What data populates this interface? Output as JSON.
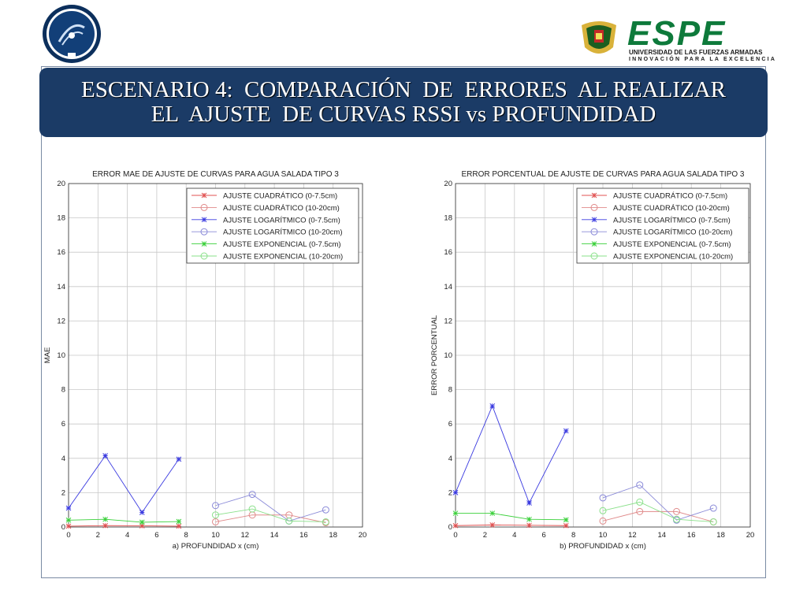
{
  "header": {
    "title_line1": "ESCENARIO 4:  COMPARACIÓN  DE  ERRORES  AL REALIZAR",
    "title_line2": "EL  AJUSTE  DE CURVAS RSSI vs PROFUNDIDAD"
  },
  "logos": {
    "left_icon": "telecom-seal-icon",
    "right_icon": "espe-crest-icon",
    "espe_word": "ESPE",
    "espe_line1": "UNIVERSIDAD DE LAS FUERZAS ARMADAS",
    "espe_line2": "INNOVACIÓN PARA LA EXCELENCIA",
    "colors": {
      "navy": "#1b3b66",
      "green": "#0e7a3b"
    }
  },
  "chart_data": [
    {
      "type": "line",
      "title": "ERROR MAE DE AJUSTE DE CURVAS PARA AGUA SALADA TIPO 3",
      "xlabel": "a) PROFUNDIDAD   x (cm)",
      "ylabel": "MAE",
      "xlim": [
        0,
        20
      ],
      "ylim": [
        0,
        20
      ],
      "xticks": [
        0,
        2,
        4,
        6,
        8,
        10,
        12,
        14,
        16,
        18,
        20
      ],
      "yticks": [
        0,
        2,
        4,
        6,
        8,
        10,
        12,
        14,
        16,
        18,
        20
      ],
      "grid": true,
      "legend_position": "top-right",
      "series": [
        {
          "name": "AJUSTE CUADRÁTICO (0-7.5cm)",
          "color": "#e05050",
          "marker": "star",
          "x": [
            0,
            2.5,
            5,
            7.5
          ],
          "y": [
            0.05,
            0.08,
            0.07,
            0.05
          ]
        },
        {
          "name": "AJUSTE CUADRÁTICO (10-20cm)",
          "color": "#e08a8a",
          "marker": "circle",
          "x": [
            10,
            12.5,
            15,
            17.5
          ],
          "y": [
            0.3,
            0.7,
            0.7,
            0.25
          ]
        },
        {
          "name": "AJUSTE LOGARÍTMICO (0-7.5cm)",
          "color": "#3a3ae0",
          "marker": "star",
          "x": [
            0,
            2.5,
            5,
            7.5
          ],
          "y": [
            1.1,
            4.15,
            0.85,
            3.95
          ]
        },
        {
          "name": "AJUSTE LOGARÍTMICO (10-20cm)",
          "color": "#8a8ad8",
          "marker": "circle",
          "x": [
            10,
            12.5,
            15,
            17.5
          ],
          "y": [
            1.25,
            1.9,
            0.35,
            1.0
          ]
        },
        {
          "name": "AJUSTE EXPONENCIAL (0-7.5cm)",
          "color": "#3ad03a",
          "marker": "star",
          "x": [
            0,
            2.5,
            5,
            7.5
          ],
          "y": [
            0.4,
            0.45,
            0.28,
            0.32
          ]
        },
        {
          "name": "AJUSTE EXPONENCIAL (10-20cm)",
          "color": "#8ae08a",
          "marker": "circle",
          "x": [
            10,
            12.5,
            15,
            17.5
          ],
          "y": [
            0.7,
            1.05,
            0.35,
            0.3
          ]
        }
      ]
    },
    {
      "type": "line",
      "title": "ERROR PORCENTUAL DE AJUSTE DE CURVAS PARA AGUA SALADA TIPO 3",
      "xlabel": "b) PROFUNDIDAD   x (cm)",
      "ylabel": "ERROR PORCENTUAL",
      "xlim": [
        0,
        20
      ],
      "ylim": [
        0,
        20
      ],
      "xticks": [
        0,
        2,
        4,
        6,
        8,
        10,
        12,
        14,
        16,
        18,
        20
      ],
      "yticks": [
        0,
        2,
        4,
        6,
        8,
        10,
        12,
        14,
        16,
        18,
        20
      ],
      "grid": true,
      "legend_position": "top-right",
      "series": [
        {
          "name": "AJUSTE CUADRÁTICO (0-7.5cm)",
          "color": "#e05050",
          "marker": "star",
          "x": [
            0,
            2.5,
            5,
            7.5
          ],
          "y": [
            0.08,
            0.12,
            0.1,
            0.08
          ]
        },
        {
          "name": "AJUSTE CUADRÁTICO (10-20cm)",
          "color": "#e08a8a",
          "marker": "circle",
          "x": [
            10,
            12.5,
            15,
            17.5
          ],
          "y": [
            0.35,
            0.9,
            0.9,
            0.3
          ]
        },
        {
          "name": "AJUSTE LOGARÍTMICO (0-7.5cm)",
          "color": "#3a3ae0",
          "marker": "star",
          "x": [
            0,
            2.5,
            5,
            7.5
          ],
          "y": [
            2.0,
            7.05,
            1.4,
            5.6
          ]
        },
        {
          "name": "AJUSTE LOGARÍTMICO (10-20cm)",
          "color": "#8a8ad8",
          "marker": "circle",
          "x": [
            10,
            12.5,
            15,
            17.5
          ],
          "y": [
            1.7,
            2.45,
            0.4,
            1.1
          ]
        },
        {
          "name": "AJUSTE EXPONENCIAL (0-7.5cm)",
          "color": "#3ad03a",
          "marker": "star",
          "x": [
            0,
            2.5,
            5,
            7.5
          ],
          "y": [
            0.8,
            0.8,
            0.45,
            0.42
          ]
        },
        {
          "name": "AJUSTE EXPONENCIAL (10-20cm)",
          "color": "#8ae08a",
          "marker": "circle",
          "x": [
            10,
            12.5,
            15,
            17.5
          ],
          "y": [
            0.95,
            1.45,
            0.45,
            0.3
          ]
        }
      ]
    }
  ]
}
